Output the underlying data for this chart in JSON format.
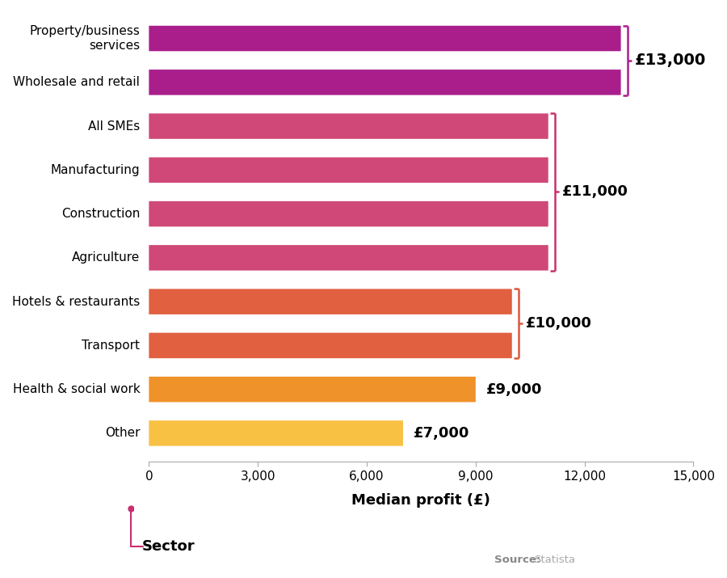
{
  "categories": [
    "Other",
    "Health & social work",
    "Transport",
    "Hotels & restaurants",
    "Agriculture",
    "Construction",
    "Manufacturing",
    "All SMEs",
    "Wholesale and retail",
    "Property/business\nservices"
  ],
  "values": [
    7000,
    9000,
    10000,
    10000,
    11000,
    11000,
    11000,
    11000,
    13000,
    13000
  ],
  "bar_colors": [
    "#F8C144",
    "#F0922A",
    "#E06040",
    "#E06040",
    "#D04878",
    "#D04878",
    "#D04878",
    "#D04878",
    "#AA1E8C",
    "#AA1E8C"
  ],
  "bracket_13_color": "#AA1E8C",
  "bracket_11_color": "#C83070",
  "bracket_10_color": "#D85840",
  "xlim": [
    0,
    15000
  ],
  "xticks": [
    0,
    3000,
    6000,
    9000,
    12000,
    15000
  ],
  "xlabel": "Median profit (£)",
  "ylabel": "Sector",
  "source_bold": "Source:",
  "source_normal": " Statista",
  "background_color": "#ffffff",
  "bar_height": 0.58
}
